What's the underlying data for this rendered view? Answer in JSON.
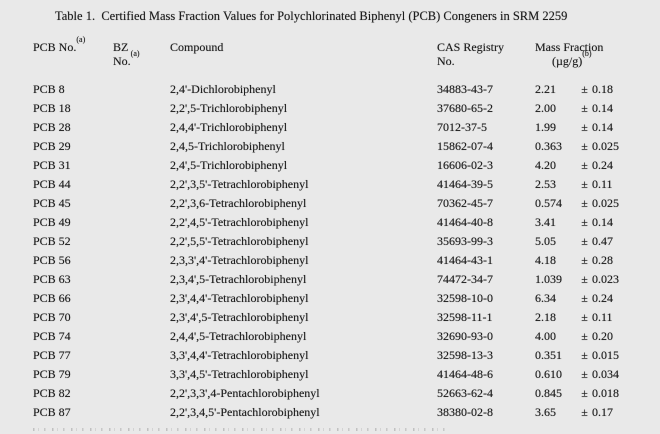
{
  "page": {
    "title": "Table 1.  Certified Mass Fraction Values for Polychlorinated Biphenyl (PCB) Congeners in SRM 2259"
  },
  "header": {
    "pcb_no": "PCB No.",
    "pcb_no_sup": "(a)",
    "bz_line1": "BZ",
    "bz_line2": "No.",
    "bz_sup": "(a)",
    "compound": "Compound",
    "cas_line1": "CAS Registry",
    "cas_line2": "No.",
    "mf_line1": "Mass Fraction",
    "mf_line2": "(µg/g)",
    "mf_sup": "(b)"
  },
  "pm_symbol": "±",
  "rows": [
    {
      "pcb": "PCB 8",
      "bz": "",
      "compound": "2,4'-Dichlorobiphenyl",
      "cas": "34883-43-7",
      "value": "2.21",
      "unc": "0.18"
    },
    {
      "pcb": "PCB 18",
      "bz": "",
      "compound": "2,2',5-Trichlorobiphenyl",
      "cas": "37680-65-2",
      "value": "2.00",
      "unc": "0.14"
    },
    {
      "pcb": "PCB 28",
      "bz": "",
      "compound": "2,4,4'-Trichlorobiphenyl",
      "cas": "7012-37-5",
      "value": "1.99",
      "unc": "0.14"
    },
    {
      "pcb": "PCB 29",
      "bz": "",
      "compound": "2,4,5-Trichlorobiphenyl",
      "cas": "15862-07-4",
      "value": "0.363",
      "unc": "0.025"
    },
    {
      "pcb": "PCB 31",
      "bz": "",
      "compound": "2,4',5-Trichlorobiphenyl",
      "cas": "16606-02-3",
      "value": "4.20",
      "unc": "0.24"
    },
    {
      "pcb": "PCB 44",
      "bz": "",
      "compound": "2,2',3,5'-Tetrachlorobiphenyl",
      "cas": "41464-39-5",
      "value": "2.53",
      "unc": "0.11"
    },
    {
      "pcb": "PCB 45",
      "bz": "",
      "compound": "2,2',3,6-Tetrachlorobiphenyl",
      "cas": "70362-45-7",
      "value": "0.574",
      "unc": "0.025"
    },
    {
      "pcb": "PCB 49",
      "bz": "",
      "compound": "2,2',4,5'-Tetrachlorobiphenyl",
      "cas": "41464-40-8",
      "value": "3.41",
      "unc": "0.14"
    },
    {
      "pcb": "PCB 52",
      "bz": "",
      "compound": "2,2',5,5'-Tetrachlorobiphenyl",
      "cas": "35693-99-3",
      "value": "5.05",
      "unc": "0.47"
    },
    {
      "pcb": "PCB 56",
      "bz": "",
      "compound": "2,3,3',4'-Tetrachlorobiphenyl",
      "cas": "41464-43-1",
      "value": "4.18",
      "unc": "0.28"
    },
    {
      "pcb": "PCB 63",
      "bz": "",
      "compound": "2,3,4',5-Tetrachlorobiphenyl",
      "cas": "74472-34-7",
      "value": "1.039",
      "unc": "0.023"
    },
    {
      "pcb": "PCB 66",
      "bz": "",
      "compound": "2,3',4,4'-Tetrachlorobiphenyl",
      "cas": "32598-10-0",
      "value": "6.34",
      "unc": "0.24"
    },
    {
      "pcb": "PCB 70",
      "bz": "",
      "compound": "2,3',4',5-Tetrachlorobiphenyl",
      "cas": "32598-11-1",
      "value": "2.18",
      "unc": "0.11"
    },
    {
      "pcb": "PCB 74",
      "bz": "",
      "compound": "2,4,4',5-Tetrachlorobiphenyl",
      "cas": "32690-93-0",
      "value": "4.00",
      "unc": "0.20"
    },
    {
      "pcb": "PCB 77",
      "bz": "",
      "compound": "3,3',4,4'-Tetrachlorobiphenyl",
      "cas": "32598-13-3",
      "value": "0.351",
      "unc": "0.015"
    },
    {
      "pcb": "PCB 79",
      "bz": "",
      "compound": "3,3',4,5'-Tetrachlorobiphenyl",
      "cas": "41464-48-6",
      "value": "0.610",
      "unc": "0.034"
    },
    {
      "pcb": "PCB 82",
      "bz": "",
      "compound": "2,2',3,3',4-Pentachlorobiphenyl",
      "cas": "52663-62-4",
      "value": "0.845",
      "unc": "0.018"
    },
    {
      "pcb": "PCB 87",
      "bz": "",
      "compound": "2,2',3,4,5'-Pentachlorobiphenyl",
      "cas": "38380-02-8",
      "value": "3.65",
      "unc": "0.17"
    }
  ]
}
